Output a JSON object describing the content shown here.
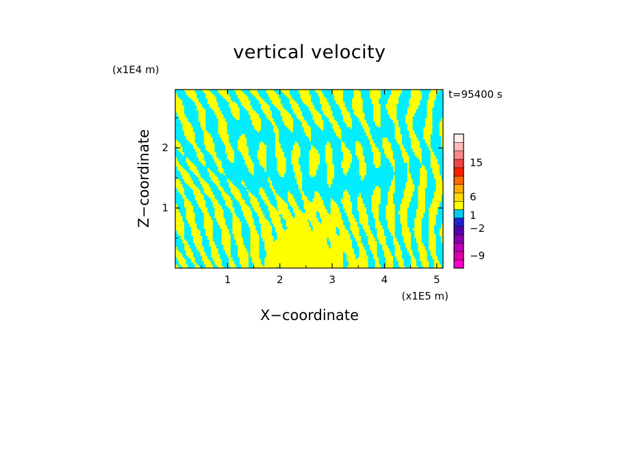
{
  "chart_data": {
    "type": "heatmap",
    "title": "vertical velocity",
    "xlabel": "X−coordinate",
    "ylabel": "Z−coordinate",
    "x_unit_label": "(x1E5 m)",
    "y_unit_label": "(x1E4 m)",
    "time_label": "t=95400 s",
    "xlim": [
      0,
      5.12
    ],
    "ylim": [
      0,
      2.97
    ],
    "xticks": [
      "1",
      "2",
      "3",
      "4",
      "5"
    ],
    "yticks": [
      "1",
      "2"
    ],
    "xtick_values": [
      1,
      2,
      3,
      4,
      5
    ],
    "ytick_values": [
      1,
      2
    ],
    "grid": false,
    "field": {
      "description_values": "dominant velocity sign per region",
      "positive_color": "#ffff00",
      "negative_color": "#00eeff",
      "pattern": "banded tilted stripes alternating positive/negative; large positive core near lower center, large negative arches above"
    },
    "colorbar": {
      "colors": [
        "#ff00cc",
        "#dd00aa",
        "#bb00bb",
        "#8800aa",
        "#5500aa",
        "#2222cc",
        "#00ccee",
        "#ffff00",
        "#ffdd00",
        "#ffaa00",
        "#ff6600",
        "#ff2200",
        "#ee4444",
        "#ff8888",
        "#ffbbbb",
        "#ffeeee"
      ],
      "labels": [
        "15",
        "6",
        "1",
        "−2",
        "−9"
      ],
      "label_values": [
        15,
        6,
        1,
        -2,
        -9
      ]
    }
  }
}
